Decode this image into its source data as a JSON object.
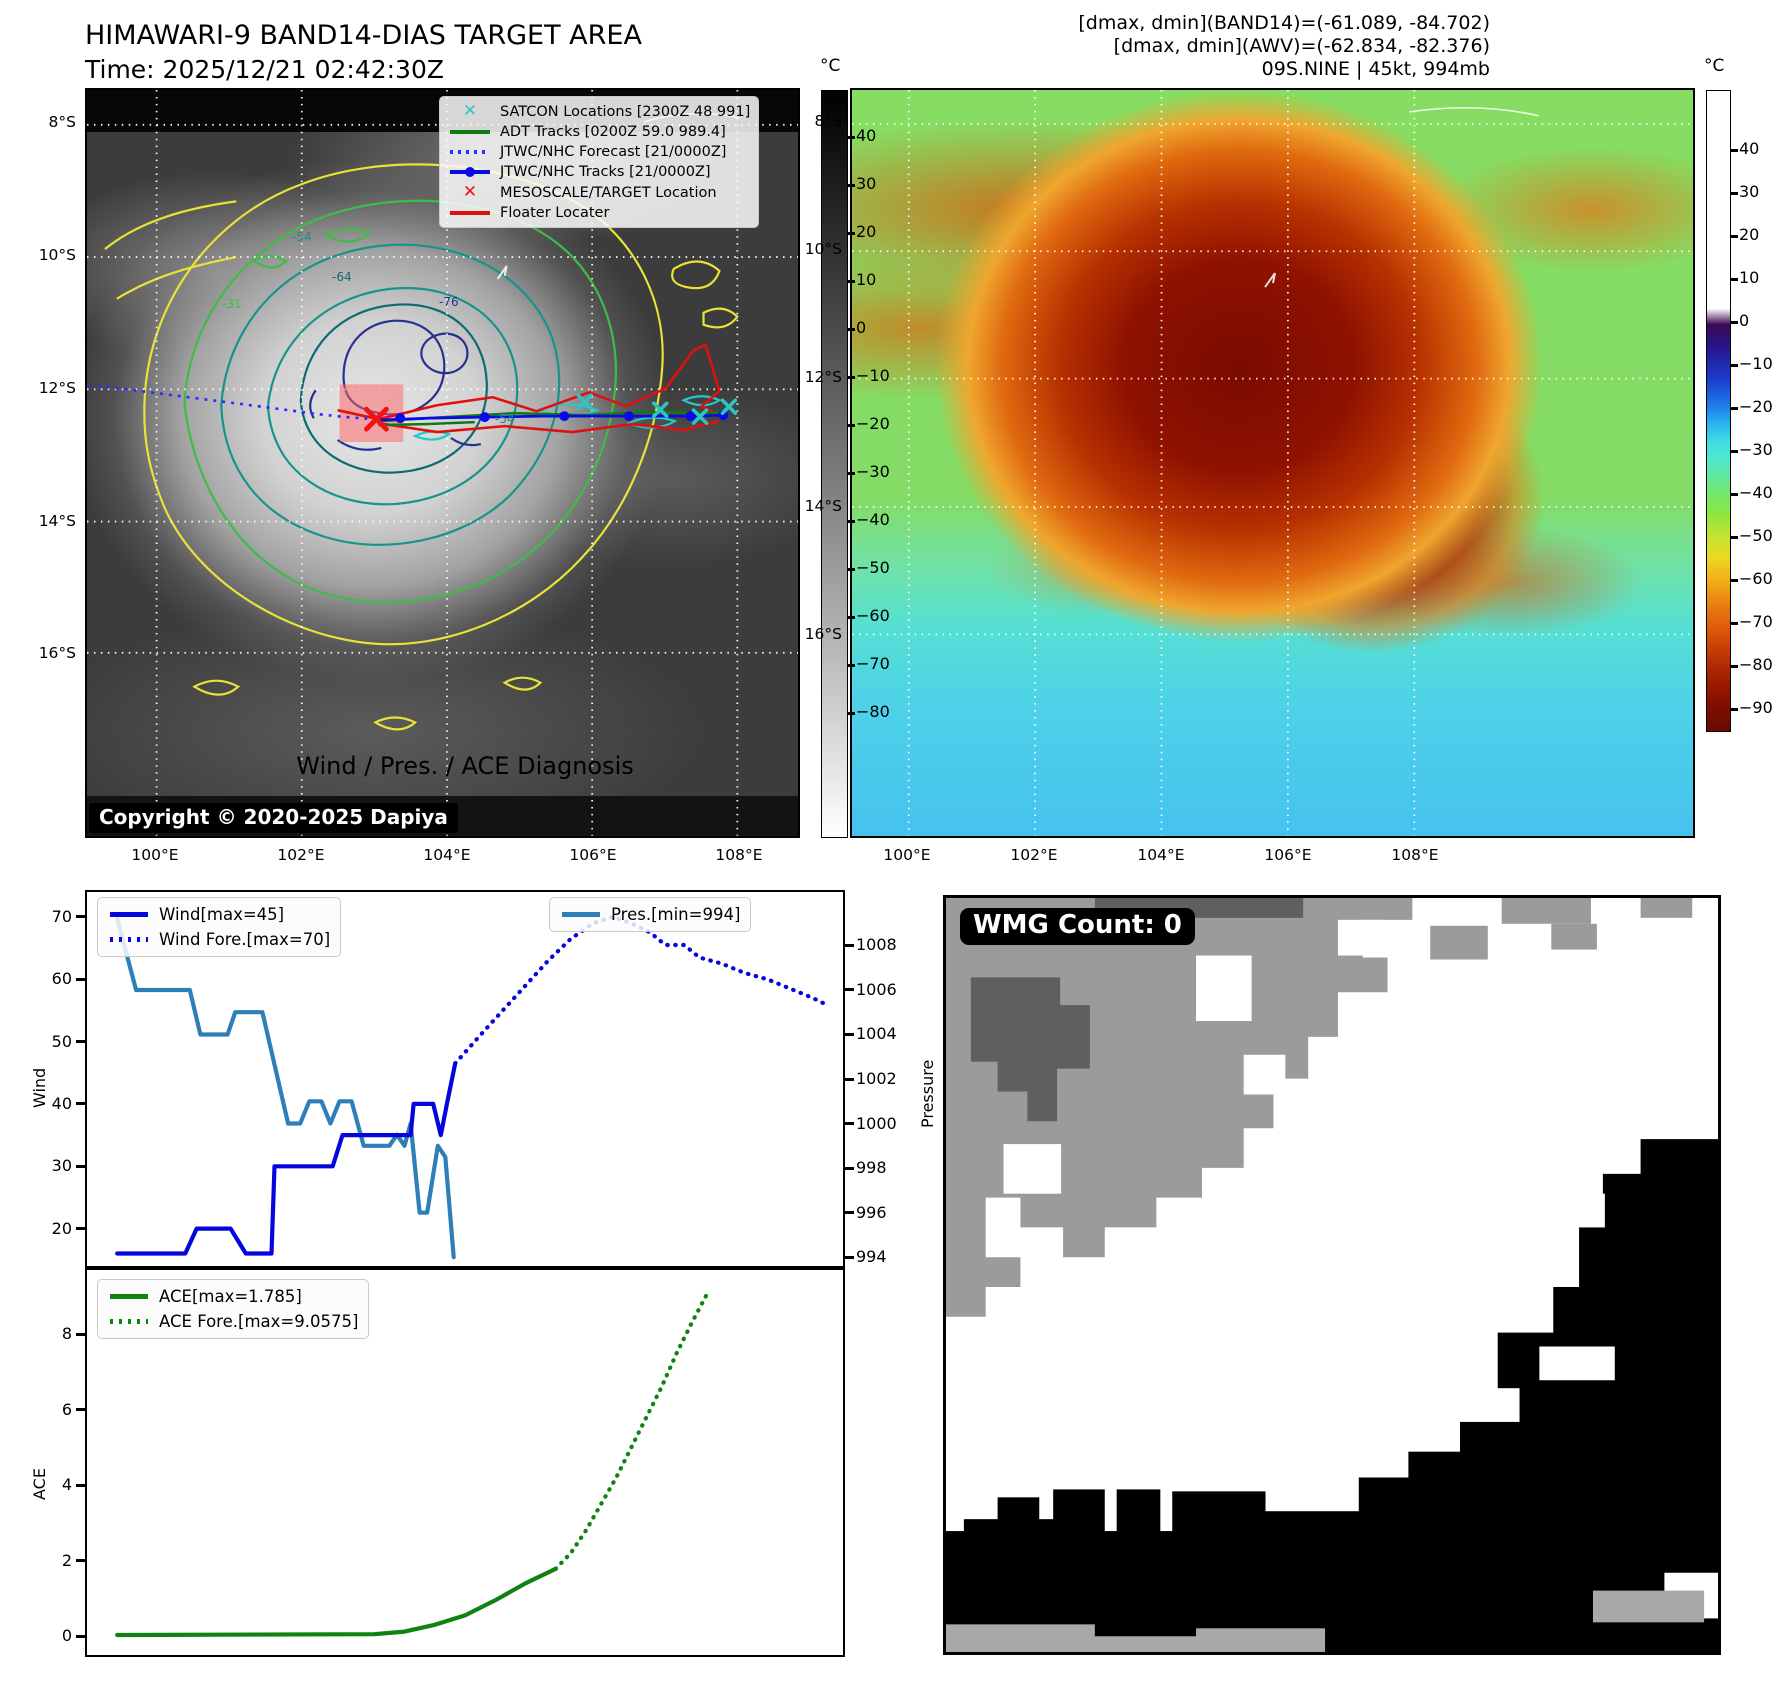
{
  "header": {
    "title": "HIMAWARI-9 BAND14-DIAS TARGET AREA",
    "subtitle": "Time: 2025/12/21 02:42:30Z",
    "annotation_lines": [
      "[dmax, dmin](BAND14)=(-61.089, -84.702)",
      "[dmax, dmin](AWV)=(-62.834, -82.376)",
      "09S.NINE | 45kt, 994mb"
    ]
  },
  "band14_map": {
    "legend": [
      {
        "marker": "x",
        "color": "#2ec4c4",
        "label": "SATCON Locations [2300Z 48 991]"
      },
      {
        "marker": "line",
        "color": "#127a12",
        "label": "ADT Tracks [0200Z 59.0 989.4]"
      },
      {
        "marker": "dotted",
        "color": "#2b2bff",
        "label": "JTWC/NHC Forecast [21/0000Z]"
      },
      {
        "marker": "line-dot",
        "color": "#0a0ae6",
        "label": "JTWC/NHC Tracks [21/0000Z]"
      },
      {
        "marker": "x",
        "color": "#f01414",
        "label": "MESOSCALE/TARGET Location"
      },
      {
        "marker": "line",
        "color": "#e01010",
        "label": "Floater Locater"
      }
    ],
    "contour_labels": [
      {
        "text": "-54"
      },
      {
        "text": "-64"
      },
      {
        "text": "-76"
      },
      {
        "text": "-54"
      },
      {
        "text": "-31"
      }
    ],
    "copyright": "Copyright © 2020-2025 Dapiya",
    "x_ticks": [
      "100°E",
      "102°E",
      "104°E",
      "106°E",
      "108°E"
    ],
    "y_ticks": [
      "8°S",
      "10°S",
      "12°S",
      "14°S",
      "16°S"
    ],
    "colorbar": {
      "unit": "°C",
      "ticks": [
        "40",
        "30",
        "20",
        "10",
        "0",
        "−10",
        "−20",
        "−30",
        "−40",
        "−50",
        "−60",
        "−70",
        "−80"
      ]
    }
  },
  "awv_map": {
    "x_ticks": [
      "100°E",
      "102°E",
      "104°E",
      "106°E",
      "108°E"
    ],
    "y_ticks": [
      "8°S",
      "10°S",
      "12°S",
      "14°S",
      "16°S"
    ],
    "colorbar": {
      "unit": "°C",
      "ticks": [
        "40",
        "30",
        "20",
        "10",
        "0",
        "−10",
        "−20",
        "−30",
        "−40",
        "−50",
        "−60",
        "−70",
        "−80",
        "−90"
      ]
    }
  },
  "diagnosis": {
    "title": "Wind / Pres. / ACE Diagnosis",
    "wind_axis_label": "Wind",
    "pressure_axis_label": "Pressure",
    "ace_axis_label": "ACE"
  },
  "wmg_panel": {
    "count_label": "WMG Count: 0"
  },
  "chart_data": [
    {
      "type": "line",
      "title": "Wind / Pres. / ACE Diagnosis",
      "x_range": [
        0,
        100
      ],
      "left_axis": {
        "label": "Wind",
        "ticks": [
          20,
          30,
          40,
          50,
          60,
          70
        ],
        "lim": [
          14,
          74
        ]
      },
      "right_axis": {
        "label": "Pressure",
        "ticks": [
          994,
          996,
          998,
          1000,
          1002,
          1004,
          1006,
          1008
        ],
        "lim": [
          993.6,
          1010.4
        ]
      },
      "series": [
        {
          "name": "Wind[max=45]",
          "axis": "left",
          "style": "solid",
          "color": "#0505dd",
          "points": [
            [
              4,
              16
            ],
            [
              13,
              16
            ],
            [
              14.5,
              20
            ],
            [
              19,
              20
            ],
            [
              21,
              16
            ],
            [
              24.4,
              16
            ],
            [
              24.8,
              30
            ],
            [
              32.5,
              30
            ],
            [
              33.8,
              35
            ],
            [
              42.8,
              35
            ],
            [
              43.2,
              40
            ],
            [
              45.8,
              40
            ],
            [
              46.8,
              35
            ],
            [
              47.6,
              40
            ],
            [
              48.7,
              46.5
            ]
          ]
        },
        {
          "name": "Wind Fore.[max=70]",
          "axis": "left",
          "style": "dotted",
          "color": "#0505dd",
          "points": [
            [
              48.7,
              46.5
            ],
            [
              52,
              51
            ],
            [
              55,
              55
            ],
            [
              58,
              59
            ],
            [
              61,
              63
            ],
            [
              64,
              66.5
            ],
            [
              67,
              69
            ],
            [
              69.5,
              70
            ],
            [
              72,
              69
            ],
            [
              74.5,
              67.5
            ],
            [
              76.5,
              65.5
            ],
            [
              79,
              65.5
            ],
            [
              81,
              63.5
            ],
            [
              84,
              62.5
            ],
            [
              87,
              61
            ],
            [
              90,
              60
            ],
            [
              93,
              58.5
            ],
            [
              96,
              57
            ],
            [
              98,
              55.8
            ]
          ]
        },
        {
          "name": "Pres.[min=994]",
          "axis": "right",
          "style": "solid",
          "color": "#2e7fb8",
          "points": [
            [
              4,
              1009.2
            ],
            [
              6.5,
              1006
            ],
            [
              13.6,
              1006
            ],
            [
              15,
              1004
            ],
            [
              18.6,
              1004
            ],
            [
              19.6,
              1005
            ],
            [
              23.2,
              1005
            ],
            [
              26.6,
              1000
            ],
            [
              28.2,
              1000
            ],
            [
              29.4,
              1001
            ],
            [
              31,
              1001
            ],
            [
              32.2,
              1000
            ],
            [
              33.4,
              1001
            ],
            [
              35,
              1001
            ],
            [
              36.6,
              999
            ],
            [
              40,
              999
            ],
            [
              41,
              999.5
            ],
            [
              42,
              999
            ],
            [
              42.8,
              1000
            ],
            [
              44,
              996
            ],
            [
              45,
              996
            ],
            [
              46.4,
              999
            ],
            [
              47.4,
              998.5
            ],
            [
              48.5,
              994
            ]
          ]
        }
      ]
    },
    {
      "type": "line",
      "left_axis": {
        "label": "ACE",
        "ticks": [
          0,
          2,
          4,
          6,
          8
        ],
        "lim": [
          -0.5,
          9.7
        ]
      },
      "series": [
        {
          "name": "ACE[max=1.785]",
          "axis": "left",
          "style": "solid",
          "color": "#108210",
          "points": [
            [
              4,
              0.03
            ],
            [
              38,
              0.05
            ],
            [
              42,
              0.12
            ],
            [
              46,
              0.3
            ],
            [
              50,
              0.55
            ],
            [
              54,
              0.95
            ],
            [
              58,
              1.4
            ],
            [
              62,
              1.785
            ]
          ]
        },
        {
          "name": "ACE Fore.[max=9.0575]",
          "axis": "left",
          "style": "dotted",
          "color": "#108210",
          "points": [
            [
              62,
              1.785
            ],
            [
              64,
              2.2
            ],
            [
              66,
              2.8
            ],
            [
              68,
              3.5
            ],
            [
              70,
              4.2
            ],
            [
              72,
              5.0
            ],
            [
              74,
              5.8
            ],
            [
              76,
              6.6
            ],
            [
              78,
              7.5
            ],
            [
              80,
              8.3
            ],
            [
              82,
              9.06
            ]
          ]
        }
      ]
    }
  ]
}
